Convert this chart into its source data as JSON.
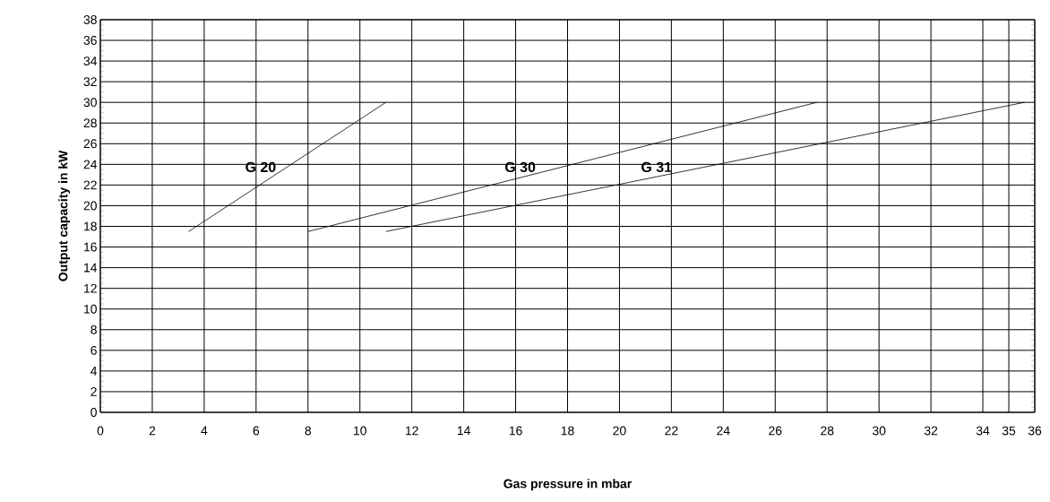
{
  "chart_data": {
    "type": "line",
    "xlabel": "Gas pressure in mbar",
    "ylabel": "Output capacity in kW",
    "series": [
      {
        "name": "G 20",
        "color": "#000000",
        "x": [
          3.4,
          11
        ],
        "values": [
          17.5,
          30
        ]
      },
      {
        "name": "G 30",
        "color": "#000000",
        "x": [
          8,
          27.6
        ],
        "values": [
          17.5,
          30
        ]
      },
      {
        "name": "G 31",
        "color": "#000000",
        "x": [
          11,
          35.6
        ],
        "values": [
          17.5,
          30
        ]
      }
    ],
    "xlim": [
      0,
      36
    ],
    "ylim": [
      0,
      38
    ],
    "xticks": [
      0,
      2,
      4,
      6,
      8,
      10,
      12,
      14,
      16,
      18,
      20,
      22,
      24,
      26,
      28,
      30,
      32,
      34,
      35,
      36
    ],
    "yticks": [
      0,
      2,
      4,
      6,
      8,
      10,
      12,
      14,
      16,
      18,
      20,
      22,
      24,
      26,
      28,
      30,
      32,
      34,
      36,
      38
    ],
    "grid": true,
    "marker": "none",
    "line_style": "solid"
  }
}
